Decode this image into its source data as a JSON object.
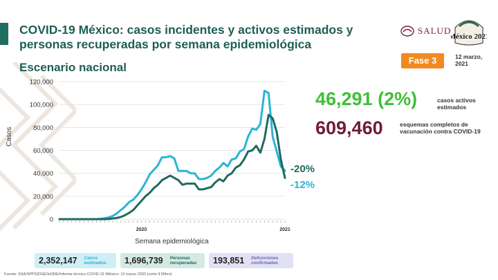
{
  "header": {
    "title": "COVID-19 México: casos incidentes y activos estimados y personas recuperadas por semana epidemiológica",
    "subtitle": "Escenario nacional",
    "logo_text": "SALUD",
    "seal_text": "México 2021",
    "fase_label": "Fase 3",
    "date_line1": "12 marzo,",
    "date_line2": "2021"
  },
  "kpis": {
    "active_value": "46,291 (2%)",
    "active_label_1": "casos activos",
    "active_label_2": "estimados",
    "vacc_value": "609,460",
    "vacc_label_1": "esquemas completos de",
    "vacc_label_2": "vacunación contra COVID-19"
  },
  "annotations": {
    "cyan_change": "-20%",
    "green_change": "-12%"
  },
  "boxes": [
    {
      "value": "2,352,147",
      "label_1": "Casos",
      "label_2": "estimados"
    },
    {
      "value": "1,696,739",
      "label_1": "Personas",
      "label_2": "recuperadas"
    },
    {
      "value": "193,851",
      "label_1": "Defunciones",
      "label_2": "confirmadas"
    }
  ],
  "source": "Fuente: SSA/SPPS/DGE/InDRE/Informe técnico.COVID-19 /México- 12 marzo 2020 (corte 9:00hrs)",
  "colors": {
    "cyan": "#2bb3d6",
    "green": "#1d6a5e",
    "kpi_green": "#3fbf3a",
    "kpi_maroon": "#6e1b3c",
    "fase_orange": "#f28a20"
  },
  "chart_data": {
    "type": "line",
    "title": "",
    "xlabel": "Semana epidemiológica",
    "ylabel": "Casos",
    "ylim": [
      0,
      120000
    ],
    "yticks": [
      0,
      20000,
      40000,
      60000,
      80000,
      100000,
      120000
    ],
    "ytick_labels": [
      "0",
      "20,000",
      "40,000",
      "60,000",
      "80,000",
      "100,000",
      "120,000"
    ],
    "year_labels": [
      {
        "label": "2020",
        "at_index": 20
      },
      {
        "label": "2021",
        "at_index": 55
      }
    ],
    "series": [
      {
        "name": "",
        "color": "#2bb3d6",
        "values": [
          0,
          0,
          0,
          0,
          0,
          0,
          0,
          0,
          0,
          0,
          300,
          700,
          1500,
          2800,
          5000,
          8000,
          11000,
          15000,
          17000,
          21000,
          26000,
          32000,
          39000,
          43000,
          47000,
          54000,
          54000,
          55000,
          53000,
          42000,
          42000,
          42000,
          40000,
          40000,
          35000,
          35000,
          36000,
          38000,
          42000,
          45000,
          49000,
          46000,
          52000,
          53000,
          59000,
          61000,
          72000,
          79000,
          78000,
          83000,
          112000,
          110000,
          72000,
          59000,
          46000,
          42000
        ]
      },
      {
        "name": "",
        "color": "#1d6a5e",
        "values": [
          0,
          0,
          0,
          0,
          0,
          0,
          0,
          0,
          0,
          0,
          0,
          0,
          200,
          600,
          1000,
          2000,
          3500,
          5500,
          8000,
          12000,
          16000,
          20000,
          23000,
          27000,
          30000,
          34000,
          36000,
          38000,
          36000,
          34000,
          30000,
          31000,
          31000,
          31000,
          26000,
          26000,
          27000,
          28000,
          32000,
          35000,
          33000,
          38000,
          40000,
          45000,
          47000,
          52000,
          59000,
          60000,
          64000,
          58000,
          70000,
          91000,
          88000,
          76000,
          52000,
          36000
        ]
      }
    ]
  }
}
